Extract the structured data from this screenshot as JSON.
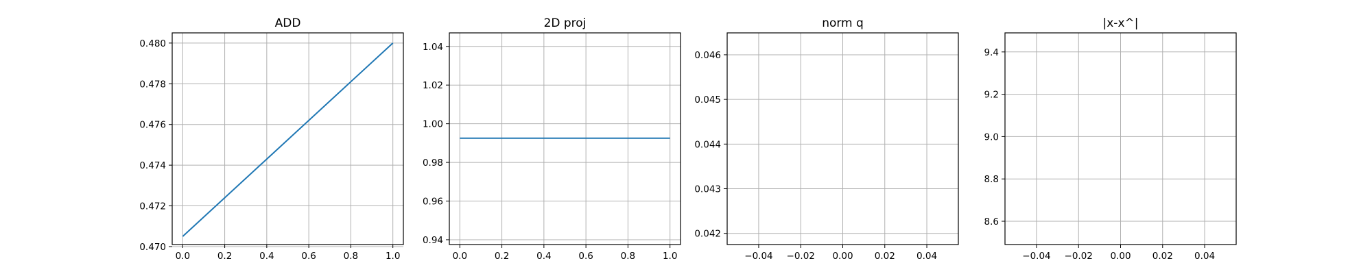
{
  "colors": {
    "series": "#1f77b4",
    "grid": "#b0b0b0",
    "background": "#ffffff"
  },
  "chart_data": [
    {
      "type": "line",
      "title": "ADD",
      "xlabel": "",
      "ylabel": "",
      "xlim": [
        -0.05,
        1.05
      ],
      "ylim": [
        0.4701,
        0.4805
      ],
      "xticks": [
        0.0,
        0.2,
        0.4,
        0.6,
        0.8,
        1.0
      ],
      "xtick_labels": [
        "0.0",
        "0.2",
        "0.4",
        "0.6",
        "0.8",
        "1.0"
      ],
      "yticks": [
        0.47,
        0.472,
        0.474,
        0.476,
        0.478,
        0.48
      ],
      "ytick_labels": [
        "0.470",
        "0.472",
        "0.474",
        "0.476",
        "0.478",
        "0.480"
      ],
      "grid": true,
      "series": [
        {
          "x": [
            0.0,
            1.0
          ],
          "y": [
            0.4705,
            0.48
          ]
        }
      ]
    },
    {
      "type": "line",
      "title": "2D proj",
      "xlabel": "",
      "ylabel": "",
      "xlim": [
        -0.05,
        1.05
      ],
      "ylim": [
        0.9375,
        1.047
      ],
      "xticks": [
        0.0,
        0.2,
        0.4,
        0.6,
        0.8,
        1.0
      ],
      "xtick_labels": [
        "0.0",
        "0.2",
        "0.4",
        "0.6",
        "0.8",
        "1.0"
      ],
      "yticks": [
        0.94,
        0.96,
        0.98,
        1.0,
        1.02,
        1.04
      ],
      "ytick_labels": [
        "0.94",
        "0.96",
        "0.98",
        "1.00",
        "1.02",
        "1.04"
      ],
      "grid": true,
      "series": [
        {
          "x": [
            0.0,
            1.0
          ],
          "y": [
            0.9925,
            0.9925
          ]
        }
      ]
    },
    {
      "type": "line",
      "title": "norm q",
      "xlabel": "",
      "ylabel": "",
      "xlim": [
        -0.055,
        0.055
      ],
      "ylim": [
        0.04175,
        0.04649
      ],
      "xticks": [
        -0.04,
        -0.02,
        0.0,
        0.02,
        0.04
      ],
      "xtick_labels": [
        "−0.04",
        "−0.02",
        "0.00",
        "0.02",
        "0.04"
      ],
      "yticks": [
        0.042,
        0.043,
        0.044,
        0.045,
        0.046
      ],
      "ytick_labels": [
        "0.042",
        "0.043",
        "0.044",
        "0.045",
        "0.046"
      ],
      "grid": true,
      "series": []
    },
    {
      "type": "line",
      "title": "|x-x^|",
      "xlabel": "",
      "ylabel": "",
      "xlim": [
        -0.055,
        0.055
      ],
      "ylim": [
        8.49,
        9.49
      ],
      "xticks": [
        -0.04,
        -0.02,
        0.0,
        0.02,
        0.04
      ],
      "xtick_labels": [
        "−0.04",
        "−0.02",
        "0.00",
        "0.02",
        "0.04"
      ],
      "yticks": [
        8.6,
        8.8,
        9.0,
        9.2,
        9.4
      ],
      "ytick_labels": [
        "8.6",
        "8.8",
        "9.0",
        "9.2",
        "9.4"
      ],
      "grid": true,
      "series": []
    }
  ]
}
